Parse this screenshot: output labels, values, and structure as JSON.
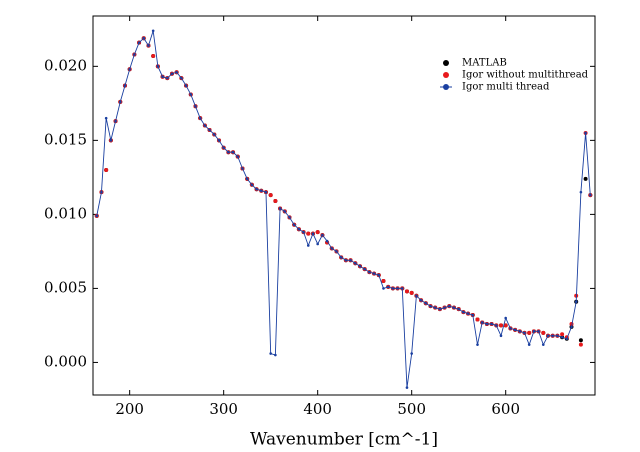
{
  "chart_data": {
    "type": "line",
    "xlabel": "Wavenumber [cm^-1]",
    "x": [
      165,
      170,
      175,
      180,
      185,
      190,
      195,
      200,
      205,
      210,
      215,
      220,
      225,
      230,
      235,
      240,
      245,
      250,
      255,
      260,
      265,
      270,
      275,
      280,
      285,
      290,
      295,
      300,
      305,
      310,
      315,
      320,
      325,
      330,
      335,
      340,
      345,
      350,
      355,
      360,
      365,
      370,
      375,
      380,
      385,
      390,
      395,
      400,
      405,
      410,
      415,
      420,
      425,
      430,
      435,
      440,
      445,
      450,
      455,
      460,
      465,
      470,
      475,
      480,
      485,
      490,
      495,
      500,
      505,
      510,
      515,
      520,
      525,
      530,
      535,
      540,
      545,
      550,
      555,
      560,
      565,
      570,
      575,
      580,
      585,
      590,
      595,
      600,
      605,
      610,
      615,
      620,
      625,
      630,
      635,
      640,
      645,
      650,
      655,
      660,
      665,
      670,
      675,
      680,
      685,
      690
    ],
    "series": [
      {
        "name": "MATLAB",
        "color": "#000000",
        "style": "markers",
        "values": [
          0.0099,
          0.0115,
          0.013,
          0.015,
          0.0163,
          0.0176,
          0.0187,
          0.0198,
          0.0208,
          0.0216,
          0.0219,
          0.0214,
          0.0207,
          0.02,
          0.0193,
          0.0192,
          0.0195,
          0.0196,
          0.0192,
          0.0187,
          0.0181,
          0.0173,
          0.0165,
          0.016,
          0.0157,
          0.0154,
          0.015,
          0.0145,
          0.0142,
          0.0142,
          0.0139,
          0.0131,
          0.0124,
          0.012,
          0.0117,
          0.0116,
          0.0115,
          0.0113,
          0.0109,
          0.0104,
          0.0102,
          0.0098,
          0.0093,
          0.009,
          0.0088,
          0.0087,
          0.0087,
          0.0088,
          0.0086,
          0.0081,
          0.0077,
          0.0075,
          0.0071,
          0.0069,
          0.0069,
          0.0067,
          0.0065,
          0.0063,
          0.0061,
          0.006,
          0.0059,
          0.0055,
          0.0051,
          0.005,
          0.005,
          0.005,
          0.0048,
          0.0047,
          0.0045,
          0.0042,
          0.004,
          0.0038,
          0.0037,
          0.0036,
          0.0037,
          0.0038,
          0.0037,
          0.0036,
          0.0034,
          0.0033,
          0.0032,
          0.0029,
          0.0027,
          0.0026,
          0.0026,
          0.0025,
          0.0025,
          0.0025,
          0.0023,
          0.0022,
          0.0021,
          0.002,
          0.002,
          0.0021,
          0.0021,
          0.002,
          0.0018,
          0.0018,
          0.0018,
          0.0017,
          0.0016,
          0.0024,
          0.0041,
          0.0015,
          0.0124,
          0.0113
        ]
      },
      {
        "name": "Igor without multithread",
        "color": "#e8191c",
        "style": "markers",
        "values": [
          0.0099,
          0.0115,
          0.013,
          0.015,
          0.0163,
          0.0176,
          0.0187,
          0.0198,
          0.0208,
          0.0216,
          0.0219,
          0.0214,
          0.0207,
          0.02,
          0.0193,
          0.0192,
          0.0195,
          0.0196,
          0.0192,
          0.0187,
          0.0181,
          0.0173,
          0.0165,
          0.016,
          0.0157,
          0.0154,
          0.015,
          0.0145,
          0.0142,
          0.0142,
          0.0139,
          0.0131,
          0.0124,
          0.012,
          0.0117,
          0.0116,
          0.0115,
          0.0113,
          0.0109,
          0.0104,
          0.0102,
          0.0098,
          0.0093,
          0.009,
          0.0088,
          0.0087,
          0.0087,
          0.0088,
          0.0086,
          0.0081,
          0.0077,
          0.0075,
          0.0071,
          0.0069,
          0.0069,
          0.0067,
          0.0065,
          0.0063,
          0.0061,
          0.006,
          0.0059,
          0.0055,
          0.0051,
          0.005,
          0.005,
          0.005,
          0.0048,
          0.0047,
          0.0045,
          0.0042,
          0.004,
          0.0038,
          0.0037,
          0.0036,
          0.0037,
          0.0038,
          0.0037,
          0.0036,
          0.0034,
          0.0033,
          0.0032,
          0.0029,
          0.0027,
          0.0026,
          0.0026,
          0.0025,
          0.0025,
          0.0025,
          0.0023,
          0.0022,
          0.0021,
          0.002,
          0.002,
          0.0021,
          0.0021,
          0.002,
          0.0018,
          0.0018,
          0.0018,
          0.0019,
          0.0017,
          0.0026,
          0.0045,
          0.0012,
          0.0155,
          0.0113
        ]
      },
      {
        "name": "Igor multi thread",
        "color": "#1a3fa0",
        "style": "line+markers",
        "values": [
          0.0099,
          0.0115,
          0.0165,
          0.015,
          0.0163,
          0.0176,
          0.0187,
          0.0198,
          0.0208,
          0.0216,
          0.0219,
          0.0214,
          0.0224,
          0.02,
          0.0193,
          0.0192,
          0.0195,
          0.0196,
          0.0192,
          0.0187,
          0.0181,
          0.0173,
          0.0165,
          0.016,
          0.0157,
          0.0154,
          0.015,
          0.0145,
          0.0142,
          0.0142,
          0.0139,
          0.0131,
          0.0124,
          0.012,
          0.0117,
          0.0116,
          0.0115,
          0.0006,
          0.0005,
          0.0104,
          0.0102,
          0.0098,
          0.0093,
          0.009,
          0.0088,
          0.0079,
          0.0087,
          0.008,
          0.0086,
          0.0082,
          0.0077,
          0.0075,
          0.0071,
          0.0069,
          0.0069,
          0.0067,
          0.0065,
          0.0063,
          0.0061,
          0.006,
          0.0059,
          0.005,
          0.0051,
          0.005,
          0.005,
          0.005,
          -0.0017,
          0.0006,
          0.0045,
          0.0042,
          0.004,
          0.0038,
          0.0037,
          0.0036,
          0.0037,
          0.0038,
          0.0037,
          0.0036,
          0.0034,
          0.0033,
          0.0032,
          0.0012,
          0.0027,
          0.0026,
          0.0026,
          0.0025,
          0.0018,
          0.003,
          0.0023,
          0.0022,
          0.0021,
          0.002,
          0.0012,
          0.0021,
          0.0021,
          0.0012,
          0.0018,
          0.0018,
          0.0018,
          0.0017,
          0.0016,
          0.0024,
          0.0041,
          0.0115,
          0.0155,
          0.0113
        ]
      }
    ],
    "xlim": [
      161,
      695
    ],
    "ylim": [
      -0.0022,
      0.0234
    ],
    "xticks": [
      200,
      300,
      400,
      500,
      600
    ],
    "yticks": [
      {
        "value": 0,
        "label": "0.000"
      },
      {
        "value": 0.005,
        "label": "0.005"
      },
      {
        "value": 0.01,
        "label": "0.010"
      },
      {
        "value": 0.015,
        "label": "0.015"
      },
      {
        "value": 0.02,
        "label": "0.020"
      }
    ],
    "legend": "upper right"
  }
}
